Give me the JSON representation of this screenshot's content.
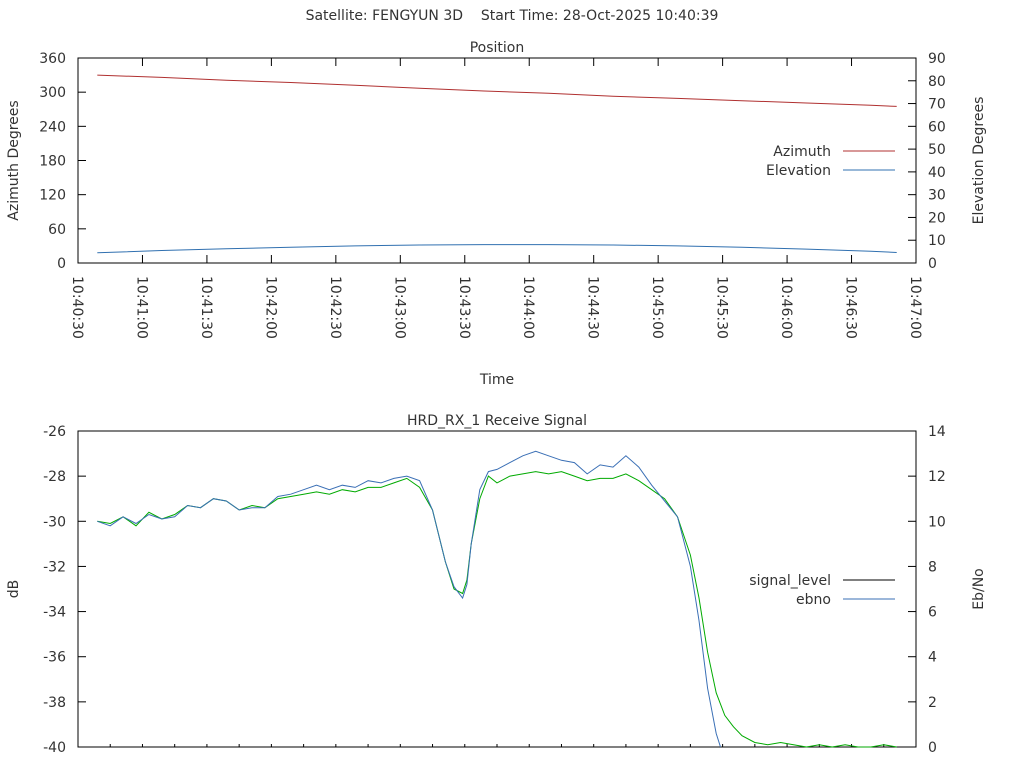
{
  "figure": {
    "title": "Satellite: FENGYUN 3D    Start Time: 28-Oct-2025 10:40:39"
  },
  "chart_data": [
    {
      "type": "line",
      "title": "Position",
      "xlabel": "Time",
      "ylabel": "Azimuth Degrees",
      "y2label": "Elevation Degrees",
      "x_ticks": [
        "10:40:30",
        "10:41:00",
        "10:41:30",
        "10:42:00",
        "10:42:30",
        "10:43:00",
        "10:43:30",
        "10:44:00",
        "10:44:30",
        "10:45:00",
        "10:45:30",
        "10:46:00",
        "10:46:30",
        "10:47:00"
      ],
      "xlim_seconds_of_day": [
        38430,
        38820
      ],
      "ylim": [
        0,
        360
      ],
      "y_ticks": [
        0,
        60,
        120,
        180,
        240,
        300,
        360
      ],
      "y2lim": [
        0,
        90
      ],
      "y2_ticks": [
        0,
        10,
        20,
        30,
        40,
        50,
        60,
        70,
        80,
        90
      ],
      "legend_position": "right",
      "grid": false,
      "series": [
        {
          "name": "Azimuth",
          "axis": "y",
          "color": "#b03030",
          "x": [
            "10:40:39",
            "10:41:09",
            "10:41:39",
            "10:42:09",
            "10:42:39",
            "10:43:09",
            "10:43:39",
            "10:44:09",
            "10:44:39",
            "10:45:09",
            "10:45:39",
            "10:46:09",
            "10:46:39",
            "10:46:51"
          ],
          "values": [
            330,
            326,
            321,
            317,
            312,
            307,
            302,
            298,
            293,
            289,
            285,
            281,
            277,
            275
          ]
        },
        {
          "name": "Elevation",
          "axis": "y2",
          "color": "#3070b0",
          "x": [
            "10:40:39",
            "10:41:09",
            "10:41:39",
            "10:42:09",
            "10:42:39",
            "10:43:09",
            "10:43:39",
            "10:44:09",
            "10:44:39",
            "10:45:09",
            "10:45:39",
            "10:46:09",
            "10:46:39",
            "10:46:51"
          ],
          "values": [
            4.5,
            5.5,
            6.3,
            6.9,
            7.5,
            7.9,
            8.1,
            8.1,
            7.9,
            7.5,
            6.9,
            6.1,
            5.2,
            4.6
          ]
        }
      ]
    },
    {
      "type": "line",
      "title": "HRD_RX_1 Receive Signal",
      "xlabel": "",
      "ylabel": "dB",
      "y2label": "Eb/No",
      "xlim_seconds_of_day": [
        38430,
        38820
      ],
      "ylim": [
        -40,
        -26
      ],
      "y_ticks": [
        -40,
        -38,
        -36,
        -34,
        -32,
        -30,
        -28,
        -26
      ],
      "y2lim": [
        0,
        14
      ],
      "y2_ticks": [
        0,
        2,
        4,
        6,
        8,
        10,
        12,
        14
      ],
      "legend_position": "right",
      "grid": false,
      "series": [
        {
          "name": "signal_level",
          "axis": "y",
          "color": "#00aa00",
          "x": [
            "10:40:39",
            "10:40:45",
            "10:40:51",
            "10:40:57",
            "10:41:03",
            "10:41:09",
            "10:41:15",
            "10:41:21",
            "10:41:27",
            "10:41:33",
            "10:41:39",
            "10:41:45",
            "10:41:51",
            "10:41:57",
            "10:42:03",
            "10:42:09",
            "10:42:15",
            "10:42:21",
            "10:42:27",
            "10:42:33",
            "10:42:39",
            "10:42:45",
            "10:42:51",
            "10:42:57",
            "10:43:03",
            "10:43:09",
            "10:43:15",
            "10:43:21",
            "10:43:25",
            "10:43:29",
            "10:43:31",
            "10:43:33",
            "10:43:37",
            "10:43:41",
            "10:43:45",
            "10:43:51",
            "10:43:57",
            "10:44:03",
            "10:44:09",
            "10:44:15",
            "10:44:21",
            "10:44:27",
            "10:44:33",
            "10:44:39",
            "10:44:45",
            "10:44:51",
            "10:44:57",
            "10:45:03",
            "10:45:09",
            "10:45:15",
            "10:45:19",
            "10:45:23",
            "10:45:27",
            "10:45:31",
            "10:45:35",
            "10:45:39",
            "10:45:45",
            "10:45:51",
            "10:45:57",
            "10:46:03",
            "10:46:09",
            "10:46:15",
            "10:46:21",
            "10:46:27",
            "10:46:33",
            "10:46:39",
            "10:46:45",
            "10:46:51"
          ],
          "values": [
            -30.0,
            -30.1,
            -29.8,
            -30.2,
            -29.6,
            -29.9,
            -29.7,
            -29.3,
            -29.4,
            -29.0,
            -29.1,
            -29.5,
            -29.3,
            -29.4,
            -29.0,
            -28.9,
            -28.8,
            -28.7,
            -28.8,
            -28.6,
            -28.7,
            -28.5,
            -28.5,
            -28.3,
            -28.1,
            -28.5,
            -29.5,
            -31.8,
            -33.0,
            -33.2,
            -32.6,
            -31.0,
            -29.0,
            -28.0,
            -28.3,
            -28.0,
            -27.9,
            -27.8,
            -27.9,
            -27.8,
            -28.0,
            -28.2,
            -28.1,
            -28.1,
            -27.9,
            -28.2,
            -28.6,
            -29.0,
            -29.8,
            -31.5,
            -33.4,
            -35.8,
            -37.6,
            -38.6,
            -39.1,
            -39.5,
            -39.8,
            -39.9,
            -39.8,
            -39.9,
            -40.0,
            -39.9,
            -40.0,
            -39.9,
            -40.0,
            -40.0,
            -39.9,
            -40.0
          ]
        },
        {
          "name": "ebno",
          "axis": "y2",
          "color": "#3a6fb5",
          "x": [
            "10:40:39",
            "10:40:45",
            "10:40:51",
            "10:40:57",
            "10:41:03",
            "10:41:09",
            "10:41:15",
            "10:41:21",
            "10:41:27",
            "10:41:33",
            "10:41:39",
            "10:41:45",
            "10:41:51",
            "10:41:57",
            "10:42:03",
            "10:42:09",
            "10:42:15",
            "10:42:21",
            "10:42:27",
            "10:42:33",
            "10:42:39",
            "10:42:45",
            "10:42:51",
            "10:42:57",
            "10:43:03",
            "10:43:09",
            "10:43:15",
            "10:43:21",
            "10:43:25",
            "10:43:29",
            "10:43:31",
            "10:43:33",
            "10:43:37",
            "10:43:41",
            "10:43:45",
            "10:43:51",
            "10:43:57",
            "10:44:03",
            "10:44:09",
            "10:44:15",
            "10:44:21",
            "10:44:27",
            "10:44:33",
            "10:44:39",
            "10:44:45",
            "10:44:51",
            "10:44:57",
            "10:45:03",
            "10:45:09",
            "10:45:15",
            "10:45:19",
            "10:45:23",
            "10:45:27",
            "10:45:29"
          ],
          "values": [
            10.0,
            9.8,
            10.2,
            9.9,
            10.3,
            10.1,
            10.2,
            10.7,
            10.6,
            11.0,
            10.9,
            10.5,
            10.6,
            10.6,
            11.1,
            11.2,
            11.4,
            11.6,
            11.4,
            11.6,
            11.5,
            11.8,
            11.7,
            11.9,
            12.0,
            11.8,
            10.5,
            8.2,
            7.1,
            6.6,
            7.2,
            9.0,
            11.4,
            12.2,
            12.3,
            12.6,
            12.9,
            13.1,
            12.9,
            12.7,
            12.6,
            12.1,
            12.5,
            12.4,
            12.9,
            12.4,
            11.6,
            10.9,
            10.2,
            8.0,
            5.6,
            2.6,
            0.6,
            0.0
          ]
        }
      ]
    }
  ]
}
